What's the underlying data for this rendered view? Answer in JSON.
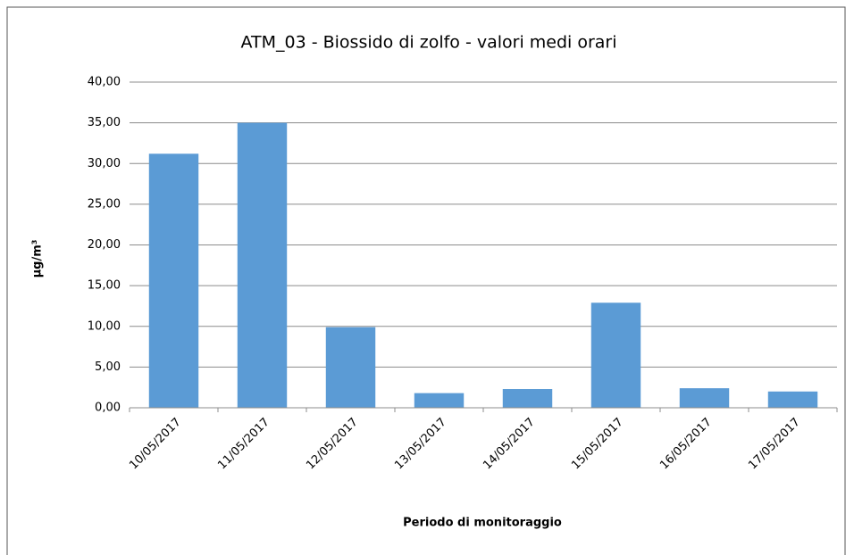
{
  "chart_data": {
    "type": "bar",
    "title": "ATM_03 - Biossido di zolfo - valori medi orari",
    "x_label": "Periodo di  monitoraggio",
    "y_label": "µg/m³",
    "categories": [
      "10/05/2017",
      "11/05/2017",
      "12/05/2017",
      "13/05/2017",
      "14/05/2017",
      "15/05/2017",
      "16/05/2017",
      "17/05/2017"
    ],
    "values": [
      31.2,
      35.0,
      9.9,
      1.8,
      2.3,
      12.9,
      2.4,
      2.0
    ],
    "color": "#5b9bd5",
    "ylim": [
      0,
      40
    ],
    "yticks": [
      {
        "value": 0,
        "label": "0,00"
      },
      {
        "value": 5,
        "label": "5,00"
      },
      {
        "value": 10,
        "label": "10,00"
      },
      {
        "value": 15,
        "label": "15,00"
      },
      {
        "value": 20,
        "label": "20,00"
      },
      {
        "value": 25,
        "label": "25,00"
      },
      {
        "value": 30,
        "label": "30,00"
      },
      {
        "value": 35,
        "label": "35,00"
      },
      {
        "value": 40,
        "label": "40,00"
      }
    ],
    "grid": true
  }
}
